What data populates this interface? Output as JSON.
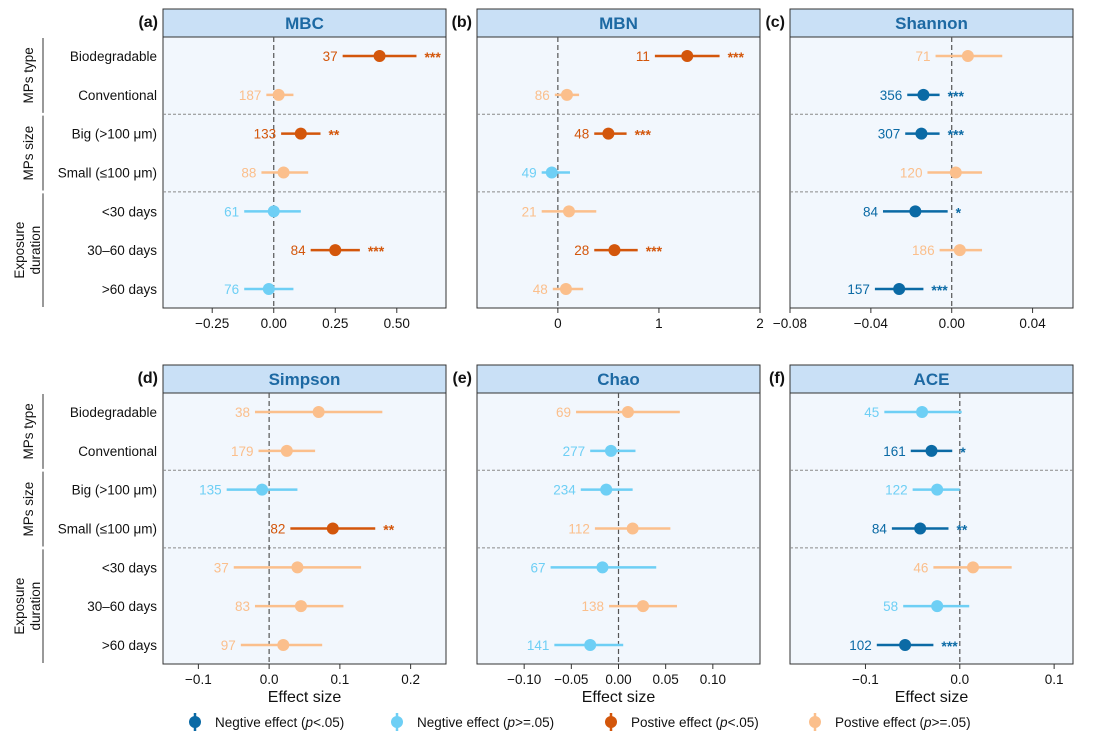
{
  "colors": {
    "neg_sig": "#0b6aa5",
    "neg_ns": "#6ecff5",
    "pos_sig": "#d3560b",
    "pos_ns": "#fbbf8c",
    "strip_bg": "#c9e0f6",
    "panel_bg": "#f2f7fd",
    "title_text": "#1d69a3"
  },
  "row_labels": [
    "Biodegradable",
    "Conventional",
    "Big (>100 μm)",
    "Small (≤100 μm)",
    "<30 days",
    "30–60 days",
    ">60 days"
  ],
  "groups": [
    {
      "label": "MPs type",
      "rows": [
        0,
        1
      ]
    },
    {
      "label": "MPs size",
      "rows": [
        2,
        3
      ]
    },
    {
      "label": "Exposure duration",
      "lines": [
        "Exposure",
        "duration"
      ],
      "rows": [
        4,
        5,
        6
      ]
    }
  ],
  "xlabel": "Effect size",
  "legend": [
    {
      "kind": "neg_sig",
      "label": "Negtive effect (p<.05)",
      "pre": "Negtive effect (",
      "it": "p",
      "post": "<.05)"
    },
    {
      "kind": "neg_ns",
      "label": "Negtive effect (p>=.05)",
      "pre": "Negtive effect (",
      "it": "p",
      "post": ">=.05)"
    },
    {
      "kind": "pos_sig",
      "label": "Postive effect (p<.05)",
      "pre": "Postive effect (",
      "it": "p",
      "post": "<.05)"
    },
    {
      "kind": "pos_ns",
      "label": "Postive effect (p>=.05)",
      "pre": "Postive effect (",
      "it": "p",
      "post": ">=.05)"
    }
  ],
  "chart_data": [
    {
      "type": "forest",
      "tag": "(a)",
      "title": "MBC",
      "xlim": [
        -0.45,
        0.7
      ],
      "ticks": [
        -0.25,
        0,
        0.25,
        0.5
      ],
      "tick_labels": [
        "−0.25",
        "0.00",
        "0.25",
        "0.50"
      ],
      "rows": [
        {
          "n": "37",
          "est": 0.43,
          "lo": 0.28,
          "hi": 0.58,
          "sig": "***",
          "kind": "pos_sig"
        },
        {
          "n": "187",
          "est": 0.02,
          "lo": -0.03,
          "hi": 0.08,
          "sig": "",
          "kind": "pos_ns"
        },
        {
          "n": "133",
          "est": 0.11,
          "lo": 0.03,
          "hi": 0.19,
          "sig": "**",
          "kind": "pos_sig"
        },
        {
          "n": "88",
          "est": 0.04,
          "lo": -0.05,
          "hi": 0.14,
          "sig": "",
          "kind": "pos_ns"
        },
        {
          "n": "61",
          "est": 0.0,
          "lo": -0.12,
          "hi": 0.11,
          "sig": "",
          "kind": "neg_ns"
        },
        {
          "n": "84",
          "est": 0.25,
          "lo": 0.15,
          "hi": 0.35,
          "sig": "***",
          "kind": "pos_sig"
        },
        {
          "n": "76",
          "est": -0.02,
          "lo": -0.12,
          "hi": 0.08,
          "sig": "",
          "kind": "neg_ns"
        }
      ]
    },
    {
      "type": "forest",
      "tag": "(b)",
      "title": "MBN",
      "xlim": [
        -0.8,
        2.0
      ],
      "ticks": [
        0,
        1,
        2
      ],
      "tick_labels": [
        "0",
        "1",
        "2"
      ],
      "rows": [
        {
          "n": "11",
          "est": 1.28,
          "lo": 0.96,
          "hi": 1.6,
          "sig": "***",
          "kind": "pos_sig"
        },
        {
          "n": "86",
          "est": 0.09,
          "lo": -0.03,
          "hi": 0.21,
          "sig": "",
          "kind": "pos_ns"
        },
        {
          "n": "48",
          "est": 0.5,
          "lo": 0.36,
          "hi": 0.68,
          "sig": "***",
          "kind": "pos_sig"
        },
        {
          "n": "49",
          "est": -0.06,
          "lo": -0.16,
          "hi": 0.12,
          "sig": "",
          "kind": "neg_ns"
        },
        {
          "n": "21",
          "est": 0.11,
          "lo": -0.16,
          "hi": 0.38,
          "sig": "",
          "kind": "pos_ns"
        },
        {
          "n": "28",
          "est": 0.56,
          "lo": 0.36,
          "hi": 0.79,
          "sig": "***",
          "kind": "pos_sig"
        },
        {
          "n": "48",
          "est": 0.08,
          "lo": -0.05,
          "hi": 0.25,
          "sig": "",
          "kind": "pos_ns"
        }
      ]
    },
    {
      "type": "forest",
      "tag": "(c)",
      "title": "Shannon",
      "xlim": [
        -0.08,
        0.06
      ],
      "ticks": [
        -0.08,
        -0.04,
        0,
        0.04
      ],
      "tick_labels": [
        "−0.08",
        "−0.04",
        "0.00",
        "0.04"
      ],
      "rows": [
        {
          "n": "71",
          "est": 0.008,
          "lo": -0.008,
          "hi": 0.025,
          "sig": "",
          "kind": "pos_ns"
        },
        {
          "n": "356",
          "est": -0.014,
          "lo": -0.022,
          "hi": -0.006,
          "sig": "***",
          "kind": "neg_sig"
        },
        {
          "n": "307",
          "est": -0.015,
          "lo": -0.023,
          "hi": -0.006,
          "sig": "***",
          "kind": "neg_sig"
        },
        {
          "n": "120",
          "est": 0.002,
          "lo": -0.012,
          "hi": 0.015,
          "sig": "",
          "kind": "pos_ns"
        },
        {
          "n": "84",
          "est": -0.018,
          "lo": -0.034,
          "hi": -0.002,
          "sig": "*",
          "kind": "neg_sig"
        },
        {
          "n": "186",
          "est": 0.004,
          "lo": -0.006,
          "hi": 0.015,
          "sig": "",
          "kind": "pos_ns"
        },
        {
          "n": "157",
          "est": -0.026,
          "lo": -0.038,
          "hi": -0.014,
          "sig": "***",
          "kind": "neg_sig"
        }
      ]
    },
    {
      "type": "forest",
      "tag": "(d)",
      "title": "Simpson",
      "xlim": [
        -0.15,
        0.25
      ],
      "ticks": [
        -0.1,
        0,
        0.1,
        0.2
      ],
      "tick_labels": [
        "−0.1",
        "0.0",
        "0.1",
        "0.2"
      ],
      "rows": [
        {
          "n": "38",
          "est": 0.07,
          "lo": -0.02,
          "hi": 0.16,
          "sig": "",
          "kind": "pos_ns"
        },
        {
          "n": "179",
          "est": 0.025,
          "lo": -0.015,
          "hi": 0.065,
          "sig": "",
          "kind": "pos_ns"
        },
        {
          "n": "135",
          "est": -0.01,
          "lo": -0.06,
          "hi": 0.04,
          "sig": "",
          "kind": "neg_ns"
        },
        {
          "n": "82",
          "est": 0.09,
          "lo": 0.03,
          "hi": 0.15,
          "sig": "**",
          "kind": "pos_sig"
        },
        {
          "n": "37",
          "est": 0.04,
          "lo": -0.05,
          "hi": 0.13,
          "sig": "",
          "kind": "pos_ns"
        },
        {
          "n": "83",
          "est": 0.045,
          "lo": -0.02,
          "hi": 0.105,
          "sig": "",
          "kind": "pos_ns"
        },
        {
          "n": "97",
          "est": 0.02,
          "lo": -0.04,
          "hi": 0.075,
          "sig": "",
          "kind": "pos_ns"
        }
      ]
    },
    {
      "type": "forest",
      "tag": "(e)",
      "title": "Chao",
      "xlim": [
        -0.15,
        0.15
      ],
      "ticks": [
        -0.1,
        -0.05,
        0,
        0.05,
        0.1
      ],
      "tick_labels": [
        "−0.10",
        "−0.05",
        "0.00",
        "0.05",
        "0.10"
      ],
      "rows": [
        {
          "n": "69",
          "est": 0.01,
          "lo": -0.045,
          "hi": 0.065,
          "sig": "",
          "kind": "pos_ns"
        },
        {
          "n": "277",
          "est": -0.008,
          "lo": -0.03,
          "hi": 0.018,
          "sig": "",
          "kind": "neg_ns"
        },
        {
          "n": "234",
          "est": -0.013,
          "lo": -0.04,
          "hi": 0.015,
          "sig": "",
          "kind": "neg_ns"
        },
        {
          "n": "112",
          "est": 0.015,
          "lo": -0.025,
          "hi": 0.055,
          "sig": "",
          "kind": "pos_ns"
        },
        {
          "n": "67",
          "est": -0.017,
          "lo": -0.072,
          "hi": 0.04,
          "sig": "",
          "kind": "neg_ns"
        },
        {
          "n": "138",
          "est": 0.026,
          "lo": -0.01,
          "hi": 0.062,
          "sig": "",
          "kind": "pos_ns"
        },
        {
          "n": "141",
          "est": -0.03,
          "lo": -0.068,
          "hi": 0.005,
          "sig": "",
          "kind": "neg_ns"
        }
      ]
    },
    {
      "type": "forest",
      "tag": "(f)",
      "title": "ACE",
      "xlim": [
        -0.18,
        0.12
      ],
      "ticks": [
        -0.1,
        0,
        0.1
      ],
      "tick_labels": [
        "−0.1",
        "0.0",
        "0.1"
      ],
      "rows": [
        {
          "n": "45",
          "est": -0.04,
          "lo": -0.08,
          "hi": 0.002,
          "sig": "",
          "kind": "neg_ns"
        },
        {
          "n": "161",
          "est": -0.03,
          "lo": -0.052,
          "hi": -0.008,
          "sig": "*",
          "kind": "neg_sig"
        },
        {
          "n": "122",
          "est": -0.024,
          "lo": -0.05,
          "hi": 0.0,
          "sig": "",
          "kind": "neg_ns"
        },
        {
          "n": "84",
          "est": -0.042,
          "lo": -0.072,
          "hi": -0.012,
          "sig": "**",
          "kind": "neg_sig"
        },
        {
          "n": "46",
          "est": 0.014,
          "lo": -0.028,
          "hi": 0.055,
          "sig": "",
          "kind": "pos_ns"
        },
        {
          "n": "58",
          "est": -0.024,
          "lo": -0.06,
          "hi": 0.01,
          "sig": "",
          "kind": "neg_ns"
        },
        {
          "n": "102",
          "est": -0.058,
          "lo": -0.088,
          "hi": -0.028,
          "sig": "***",
          "kind": "neg_sig"
        }
      ]
    }
  ]
}
